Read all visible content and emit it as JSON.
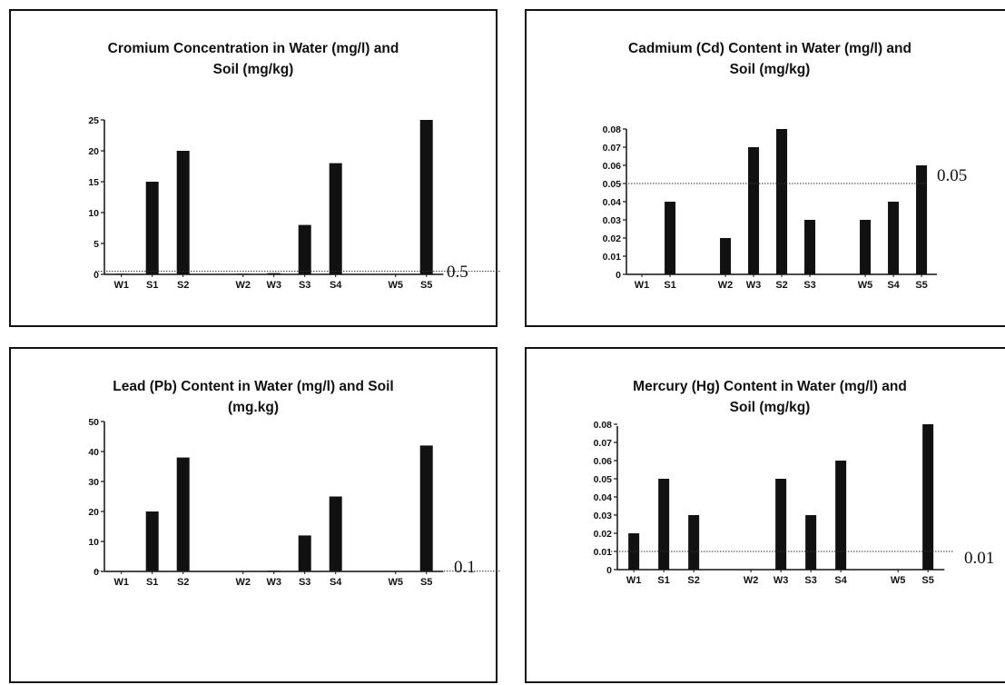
{
  "chart_data": [
    {
      "type": "bar",
      "title": "Cromium Concentration in Water (mg/l) and\nSoil (mg/kg)",
      "categories": [
        "W1",
        "S1",
        "S2",
        "W2",
        "W3",
        "S3",
        "S4",
        "W5",
        "S5"
      ],
      "groups": [
        3,
        4,
        2
      ],
      "values": [
        0.1,
        15,
        20,
        0.1,
        0.2,
        8,
        18,
        0,
        25
      ],
      "ylim": [
        0,
        25
      ],
      "yticks": [
        0,
        5,
        10,
        15,
        20,
        25
      ],
      "reference_value": 0.5,
      "reference_label": "0.5",
      "grid": false,
      "xlabel": "",
      "ylabel": ""
    },
    {
      "type": "bar",
      "title": "Cadmium (Cd) Content in Water (mg/l) and\nSoil (mg/kg)",
      "categories": [
        "W1",
        "S1",
        "W2",
        "W3",
        "S2",
        "S3",
        "W5",
        "S4",
        "S5"
      ],
      "groups": [
        2,
        4,
        3
      ],
      "values": [
        0,
        0.04,
        0.02,
        0.07,
        0.08,
        0.03,
        0.03,
        0.04,
        0.06
      ],
      "ylim": [
        0,
        0.08
      ],
      "yticks": [
        0,
        0.01,
        0.02,
        0.03,
        0.04,
        0.05,
        0.06,
        0.07,
        0.08
      ],
      "reference_value": 0.05,
      "reference_label": "0.05",
      "grid": false,
      "xlabel": "",
      "ylabel": ""
    },
    {
      "type": "bar",
      "title": "Lead (Pb) Content in Water (mg/l) and Soil\n(mg.kg)",
      "categories": [
        "W1",
        "S1",
        "S2",
        "W2",
        "W3",
        "S3",
        "S4",
        "W5",
        "S5"
      ],
      "groups": [
        3,
        4,
        2
      ],
      "values": [
        0,
        20,
        38,
        0,
        0.3,
        12,
        25,
        0,
        42
      ],
      "ylim": [
        0,
        50
      ],
      "yticks": [
        0,
        10,
        20,
        30,
        40,
        50
      ],
      "reference_value": 0.1,
      "reference_label": "0.1",
      "grid": false,
      "xlabel": "",
      "ylabel": ""
    },
    {
      "type": "bar",
      "title": "Mercury (Hg) Content in Water (mg/l) and\nSoil (mg/kg)",
      "categories": [
        "W1",
        "S1",
        "S2",
        "W2",
        "W3",
        "S3",
        "S4",
        "W5",
        "S5"
      ],
      "groups": [
        3,
        4,
        2
      ],
      "values": [
        0.02,
        0.05,
        0.03,
        0,
        0.05,
        0.03,
        0.06,
        0,
        0.08
      ],
      "ylim": [
        0,
        0.08
      ],
      "yticks": [
        0,
        0.01,
        0.02,
        0.03,
        0.04,
        0.05,
        0.06,
        0.07,
        0.08
      ],
      "reference_value": 0.01,
      "reference_label": "0.01",
      "grid": false,
      "xlabel": "",
      "ylabel": ""
    }
  ]
}
